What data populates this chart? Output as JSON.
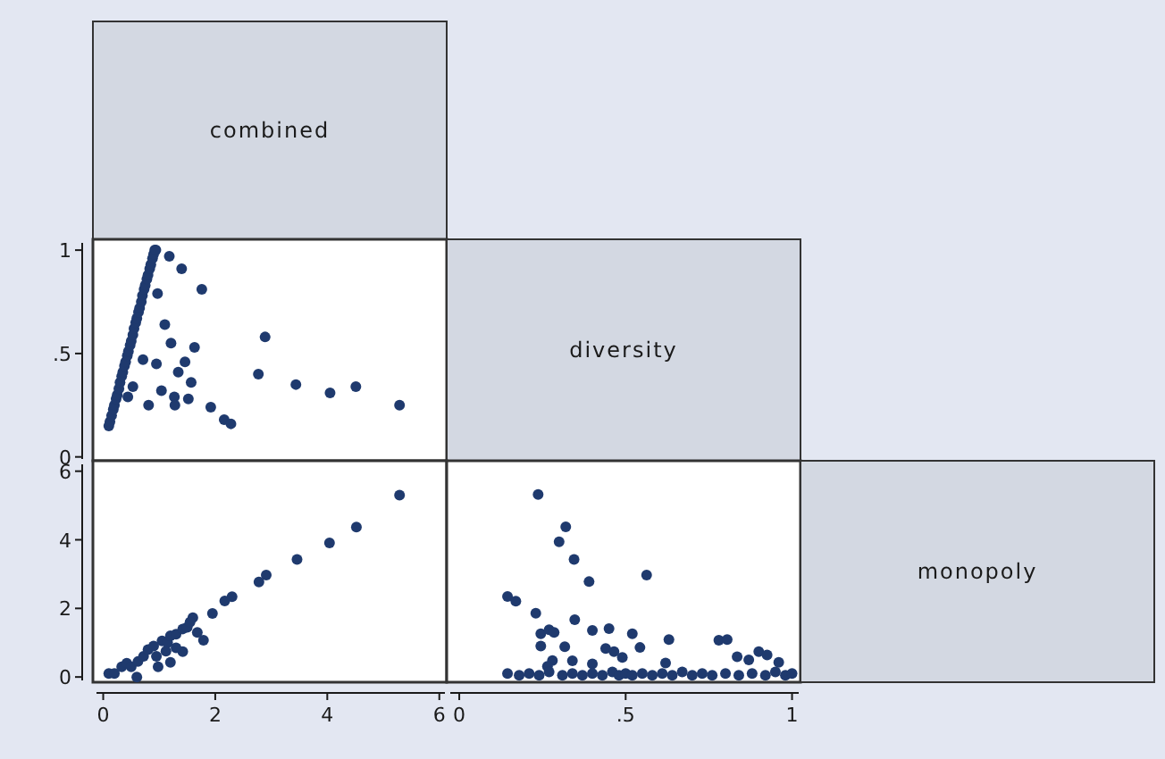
{
  "chart_data": [
    {
      "type": "other",
      "title": "combined"
    },
    {
      "type": "scatter",
      "marker": "circle",
      "tick_labels": "y",
      "xlim": [
        -0.12,
        6.1
      ],
      "ylim": [
        -0.01,
        1.035
      ],
      "yticks": [
        0,
        {
          "value": 0.5,
          "label": ".5"
        },
        1
      ],
      "series": [
        {
          "color": "#1f3a6e",
          "x": [
            0.1,
            0.12,
            0.15,
            0.18,
            0.2,
            0.23,
            0.25,
            0.28,
            0.3,
            0.33,
            0.35,
            0.38,
            0.4,
            0.43,
            0.45,
            0.48,
            0.5,
            0.53,
            0.55,
            0.58,
            0.6,
            0.63,
            0.65,
            0.68,
            0.7,
            0.73,
            0.75,
            0.78,
            0.8,
            0.83,
            0.85,
            0.88,
            0.9,
            0.92,
            0.94,
            1.18,
            1.4,
            1.76,
            0.97,
            1.1,
            1.21,
            1.63,
            0.71,
            0.95,
            1.46,
            1.34,
            0.53,
            1.04,
            1.57,
            1.27,
            0.44,
            1.52,
            1.28,
            0.81,
            1.92,
            2.16,
            2.28,
            2.77,
            2.89,
            3.44,
            4.05,
            4.51,
            5.29
          ],
          "values": [
            0.15,
            0.17,
            0.2,
            0.23,
            0.25,
            0.28,
            0.3,
            0.33,
            0.36,
            0.39,
            0.41,
            0.44,
            0.46,
            0.49,
            0.51,
            0.54,
            0.56,
            0.59,
            0.62,
            0.65,
            0.67,
            0.7,
            0.72,
            0.75,
            0.78,
            0.81,
            0.83,
            0.86,
            0.88,
            0.91,
            0.93,
            0.96,
            0.98,
            1.0,
            1.0,
            0.97,
            0.91,
            0.81,
            0.79,
            0.64,
            0.55,
            0.53,
            0.47,
            0.45,
            0.46,
            0.41,
            0.34,
            0.32,
            0.36,
            0.29,
            0.29,
            0.28,
            0.25,
            0.25,
            0.24,
            0.18,
            0.16,
            0.4,
            0.58,
            0.35,
            0.31,
            0.34,
            0.25
          ]
        }
      ]
    },
    {
      "type": "other",
      "title": "diversity"
    },
    {
      "type": "scatter",
      "marker": "circle",
      "xlim": [
        -0.12,
        6.1
      ],
      "xticks": [
        0,
        2,
        4,
        6
      ],
      "ylim": [
        -0.1,
        6.2
      ],
      "yticks": [
        0,
        2,
        4,
        6
      ],
      "series": [
        {
          "color": "#1f3a6e",
          "x": [
            5.29,
            4.52,
            4.04,
            3.46,
            2.91,
            2.78,
            2.3,
            2.17,
            1.95,
            1.79,
            1.6,
            1.42,
            1.2,
            0.1,
            0.2,
            0.33,
            0.42,
            0.5,
            0.62,
            0.72,
            0.8,
            0.9,
            0.95,
            1.05,
            1.15,
            1.2,
            1.3,
            1.42,
            1.5,
            1.55,
            1.68,
            1.3,
            1.12,
            0.98,
            0.6
          ],
          "values": [
            5.3,
            4.37,
            3.91,
            3.43,
            2.97,
            2.77,
            2.34,
            2.22,
            1.85,
            1.07,
            1.73,
            0.74,
            0.43,
            0.1,
            0.1,
            0.3,
            0.4,
            0.3,
            0.45,
            0.6,
            0.8,
            0.9,
            0.6,
            1.05,
            1.0,
            1.2,
            1.25,
            1.4,
            1.45,
            1.6,
            1.3,
            0.85,
            0.75,
            0.3,
            0.0
          ]
        }
      ]
    },
    {
      "type": "scatter",
      "marker": "circle",
      "tick_labels": "x",
      "xlim": [
        -0.027,
        1.02
      ],
      "xticks": [
        0,
        {
          "value": 0.5,
          "label": ".5"
        },
        1
      ],
      "ylim": [
        -0.1,
        6.2
      ],
      "series": [
        {
          "color": "#1f3a6e",
          "x": [
            0.237,
            0.32,
            0.3,
            0.345,
            0.39,
            0.563,
            0.145,
            0.17,
            0.23,
            0.347,
            0.245,
            0.27,
            0.285,
            0.4,
            0.45,
            0.52,
            0.63,
            0.78,
            0.805,
            0.245,
            0.317,
            0.44,
            0.465,
            0.543,
            0.49,
            0.28,
            0.34,
            0.4,
            0.62,
            0.835,
            0.87,
            0.9,
            0.925,
            0.96,
            0.265,
            0.145,
            0.18,
            0.21,
            0.24,
            0.27,
            0.31,
            0.34,
            0.37,
            0.4,
            0.43,
            0.46,
            0.48,
            0.5,
            0.52,
            0.55,
            0.58,
            0.61,
            0.64,
            0.67,
            0.7,
            0.73,
            0.76,
            0.8,
            0.84,
            0.88,
            0.92,
            0.95,
            0.98,
            1.0
          ],
          "values": [
            5.32,
            4.38,
            3.94,
            3.43,
            2.78,
            2.97,
            2.35,
            2.21,
            1.86,
            1.67,
            1.26,
            1.38,
            1.3,
            1.36,
            1.41,
            1.26,
            1.09,
            1.07,
            1.09,
            0.9,
            0.88,
            0.83,
            0.74,
            0.86,
            0.57,
            0.48,
            0.47,
            0.38,
            0.41,
            0.59,
            0.5,
            0.74,
            0.64,
            0.43,
            0.31,
            0.1,
            0.05,
            0.1,
            0.05,
            0.15,
            0.05,
            0.1,
            0.05,
            0.1,
            0.05,
            0.15,
            0.05,
            0.1,
            0.05,
            0.1,
            0.05,
            0.1,
            0.05,
            0.15,
            0.05,
            0.1,
            0.05,
            0.1,
            0.05,
            0.1,
            0.05,
            0.15,
            0.05,
            0.1
          ]
        }
      ]
    },
    {
      "type": "other",
      "title": "monopoly"
    }
  ]
}
